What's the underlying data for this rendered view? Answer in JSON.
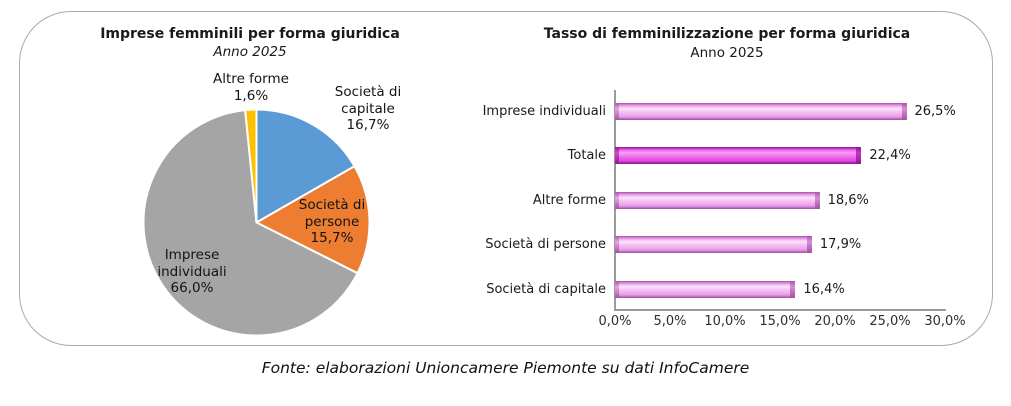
{
  "footer": {
    "text": "Fonte: elaborazioni Unioncamere Piemonte su dati InfoCamere"
  },
  "chart_data": [
    {
      "type": "pie",
      "title": "Imprese femminili per forma giuridica",
      "subtitle": "Anno 2025",
      "categories": [
        "Società di capitale",
        "Società di persone",
        "Imprese individuali",
        "Altre forme"
      ],
      "values": [
        16.7,
        15.7,
        66.0,
        1.6
      ],
      "value_labels": [
        "16,7%",
        "15,7%",
        "66,0%",
        "1,6%"
      ],
      "colors": [
        "#5B9BD5",
        "#ED7D31",
        "#A5A5A5",
        "#FFC000"
      ],
      "start_angle_deg_from_top": 0,
      "direction": "clockwise",
      "point_labels": {
        "capitale": {
          "l1": "Società di",
          "l2": "capitale",
          "l3": "16,7%"
        },
        "persone": {
          "l1": "Società di",
          "l2": "persone",
          "l3": "15,7%"
        },
        "individuali": {
          "l1": "Imprese",
          "l2": "individuali",
          "l3": "66,0%"
        },
        "altre": {
          "l1": "Altre forme",
          "l2": "1,6%"
        }
      }
    },
    {
      "type": "bar",
      "orientation": "horizontal",
      "title": "Tasso di femminilizzazione per forma giuridica",
      "subtitle": "Anno 2025",
      "categories": [
        "Imprese individuali",
        "Totale",
        "Altre forme",
        "Società di persone",
        "Società di capitale"
      ],
      "values": [
        26.5,
        22.4,
        18.6,
        17.9,
        16.4
      ],
      "value_labels": [
        "26,5%",
        "22,4%",
        "18,6%",
        "17,9%",
        "16,4%"
      ],
      "emphasis": [
        false,
        true,
        false,
        false,
        false
      ],
      "xlim": [
        0,
        30
      ],
      "x_ticks": [
        "0,0%",
        "5,0%",
        "10,0%",
        "15,0%",
        "20,0%",
        "25,0%",
        "30,0%"
      ],
      "bar_color_light": "#F2AEF2",
      "bar_color_emphasis": "#E955E9",
      "grid": false,
      "legend": "none"
    }
  ]
}
